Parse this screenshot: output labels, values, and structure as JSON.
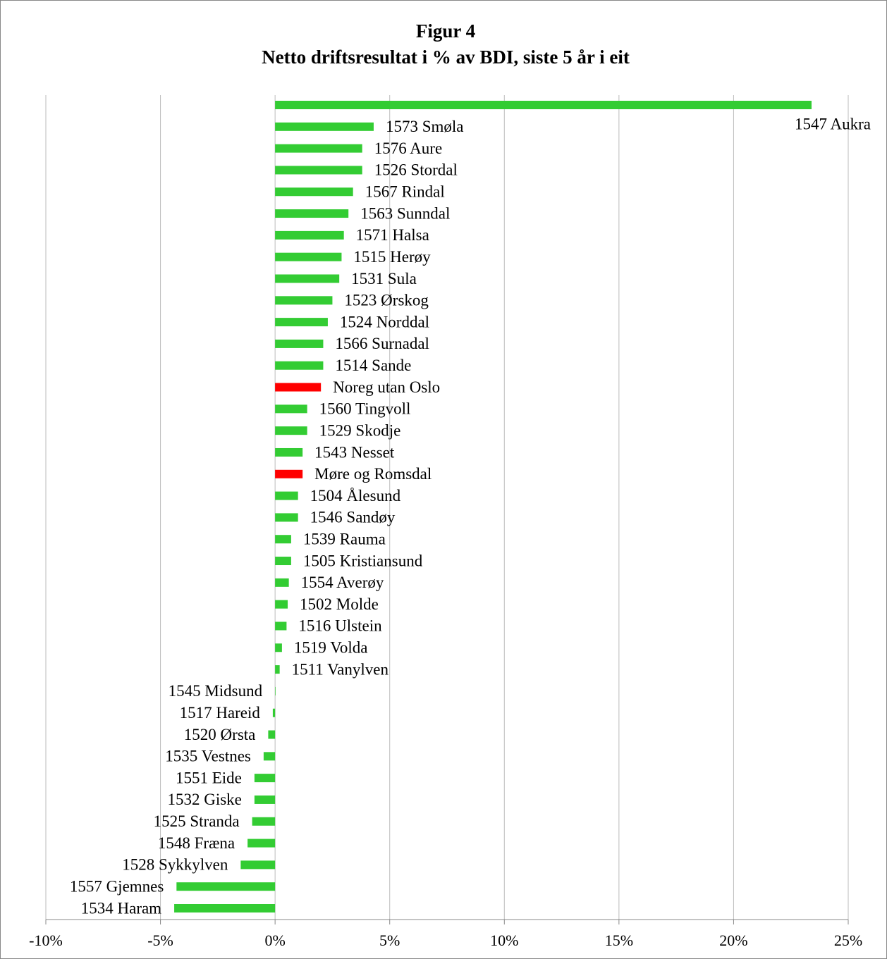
{
  "chart_data": {
    "type": "barh",
    "title": "Figur 4",
    "subtitle": "Netto driftsresultat i % av BDI, siste 5 år i eit",
    "categories": [
      "1547 Aukra",
      "1573 Smøla",
      "1576 Aure",
      "1526 Stordal",
      "1567 Rindal",
      "1563 Sunndal",
      "1571 Halsa",
      "1515 Herøy",
      "1531 Sula",
      "1523 Ørskog",
      "1524 Norddal",
      "1566 Surnadal",
      "1514 Sande",
      "Noreg utan Oslo",
      "1560 Tingvoll",
      "1529 Skodje",
      "1543 Nesset",
      "Møre og Romsdal",
      "1504 Ålesund",
      "1546 Sandøy",
      "1539 Rauma",
      "1505 Kristiansund",
      "1554 Averøy",
      "1502 Molde",
      "1516 Ulstein",
      "1519 Volda",
      "1511 Vanylven",
      "1545 Midsund",
      "1517 Hareid",
      "1520 Ørsta",
      "1535 Vestnes",
      "1551 Eide",
      "1532 Giske",
      "1525 Stranda",
      "1548 Fræna",
      "1528 Sykkylven",
      "1557 Gjemnes",
      "1534 Haram"
    ],
    "values": [
      23.4,
      4.3,
      3.8,
      3.8,
      3.4,
      3.2,
      3.0,
      2.9,
      2.8,
      2.5,
      2.3,
      2.1,
      2.1,
      2.0,
      1.4,
      1.4,
      1.2,
      1.2,
      1.0,
      1.0,
      0.7,
      0.7,
      0.6,
      0.55,
      0.5,
      0.3,
      0.2,
      0.02,
      -0.1,
      -0.3,
      -0.5,
      -0.9,
      -0.9,
      -1.0,
      -1.2,
      -1.5,
      -4.3,
      -4.4
    ],
    "colors": [
      "#33cc33",
      "#33cc33",
      "#33cc33",
      "#33cc33",
      "#33cc33",
      "#33cc33",
      "#33cc33",
      "#33cc33",
      "#33cc33",
      "#33cc33",
      "#33cc33",
      "#33cc33",
      "#33cc33",
      "#ff0000",
      "#33cc33",
      "#33cc33",
      "#33cc33",
      "#ff0000",
      "#33cc33",
      "#33cc33",
      "#33cc33",
      "#33cc33",
      "#33cc33",
      "#33cc33",
      "#33cc33",
      "#33cc33",
      "#33cc33",
      "#33cc33",
      "#33cc33",
      "#33cc33",
      "#33cc33",
      "#33cc33",
      "#33cc33",
      "#33cc33",
      "#33cc33",
      "#33cc33",
      "#33cc33",
      "#33cc33"
    ],
    "xlim": [
      -10,
      25
    ],
    "xticks": [
      {
        "value": -10,
        "label": "-10%"
      },
      {
        "value": -5,
        "label": "-5%"
      },
      {
        "value": 0,
        "label": "0%"
      },
      {
        "value": 5,
        "label": "5%"
      },
      {
        "value": 10,
        "label": "10%"
      },
      {
        "value": 15,
        "label": "15%"
      },
      {
        "value": 20,
        "label": "20%"
      },
      {
        "value": 25,
        "label": "25%"
      }
    ],
    "grid": true
  }
}
